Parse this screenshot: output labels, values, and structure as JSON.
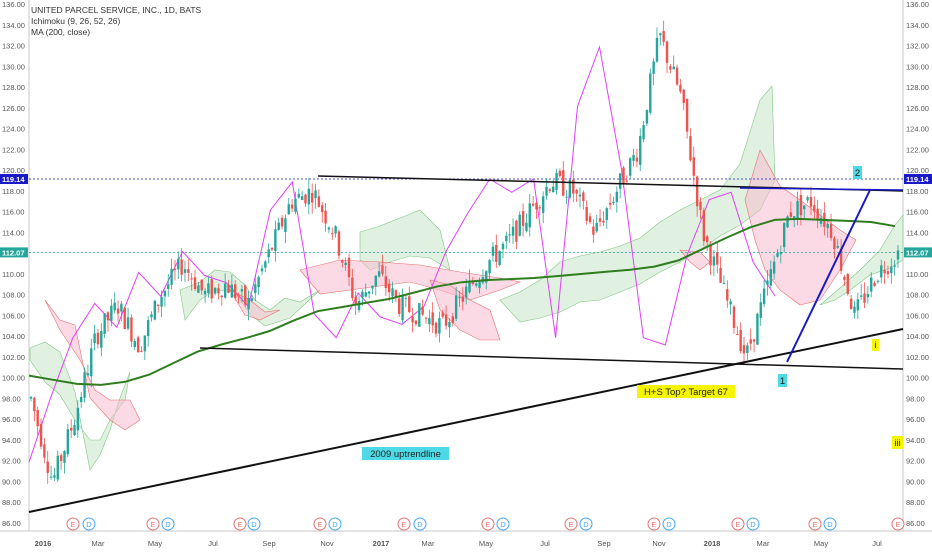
{
  "legend": {
    "symbol_line": "UNITED PARCEL SERVICE, INC., 1D, BATS",
    "ichimoku": "Ichimoku (9, 26, 52, 26)",
    "ma": "MA (200, close)"
  },
  "chart_data": {
    "type": "line",
    "ylim": [
      86,
      136
    ],
    "y_ticks": [
      "86.00",
      "88.00",
      "90.00",
      "92.00",
      "94.00",
      "96.00",
      "98.00",
      "100.00",
      "102.00",
      "104.00",
      "106.00",
      "108.00",
      "110.00",
      "112.00",
      "114.00",
      "116.00",
      "118.00",
      "120.00",
      "122.00",
      "124.00",
      "126.00",
      "128.00",
      "130.00",
      "132.00",
      "134.00",
      "136.00"
    ],
    "x_ticks": [
      "2016",
      "Mar",
      "May",
      "Jul",
      "Sep",
      "Nov",
      "2017",
      "Mar",
      "May",
      "Jul",
      "Sep",
      "Nov",
      "2018",
      "Mar",
      "May",
      "Jul"
    ],
    "price_markers": [
      {
        "value": 119.14,
        "label": "119.14",
        "color": "#1919c8"
      },
      {
        "value": 112.07,
        "label": "112.07",
        "color": "#26a69a"
      }
    ],
    "annotations": [
      {
        "text": "2009 uptrendline",
        "bg": "#4dd9e6"
      },
      {
        "text": "H+S Top? Target 67",
        "bg": "#f5f500"
      },
      {
        "text": "1",
        "bg": "#4dd9e6"
      },
      {
        "text": "2",
        "bg": "#4dd9e6"
      },
      {
        "text": "i",
        "bg": "#f5f500"
      },
      {
        "text": "iii",
        "bg": "#f5f500"
      }
    ],
    "event_markers": [
      "E",
      "D",
      "E",
      "D",
      "E",
      "D",
      "E",
      "D",
      "E",
      "D",
      "E",
      "D",
      "E",
      "D",
      "E",
      "D",
      "E",
      "D",
      "E",
      "D",
      "E",
      "D",
      "E"
    ],
    "series": [
      {
        "name": "MA (200, close)",
        "color": "#2e7d1e",
        "values": [
          100.2,
          99.8,
          99.4,
          99.3,
          99.6,
          100.3,
          101.4,
          102.5,
          103.2,
          103.8,
          104.5,
          105.5,
          106.4,
          106.8,
          107.2,
          107.6,
          108.2,
          108.8,
          109.2,
          109.4,
          109.5,
          109.6,
          109.8,
          110.0,
          110.2,
          110.4,
          110.7,
          111.3,
          112.4,
          113.5,
          114.5,
          115.2,
          115.3,
          115.2,
          115.1,
          115.0,
          114.6
        ]
      },
      {
        "name": "close",
        "color": "#333333",
        "values": [
          98,
          90,
          96,
          104,
          107,
          103,
          108,
          111,
          108,
          109,
          107,
          112,
          117,
          118,
          114,
          107,
          110,
          107,
          106,
          105,
          108,
          111,
          113,
          116,
          119,
          118,
          114,
          118,
          122,
          133,
          127,
          114,
          108,
          102,
          109,
          116,
          117,
          114,
          106,
          110,
          112
        ]
      },
      {
        "name": "lagging span",
        "color": "#e040fb",
        "values": [
          92,
          98,
          104,
          107,
          105,
          110,
          108,
          112,
          110,
          109,
          107,
          116,
          119,
          106,
          104,
          108,
          106,
          105,
          107,
          112,
          116,
          119,
          118,
          119,
          104,
          126,
          132,
          120,
          104,
          103,
          112,
          117,
          118,
          111,
          108
        ]
      }
    ]
  }
}
